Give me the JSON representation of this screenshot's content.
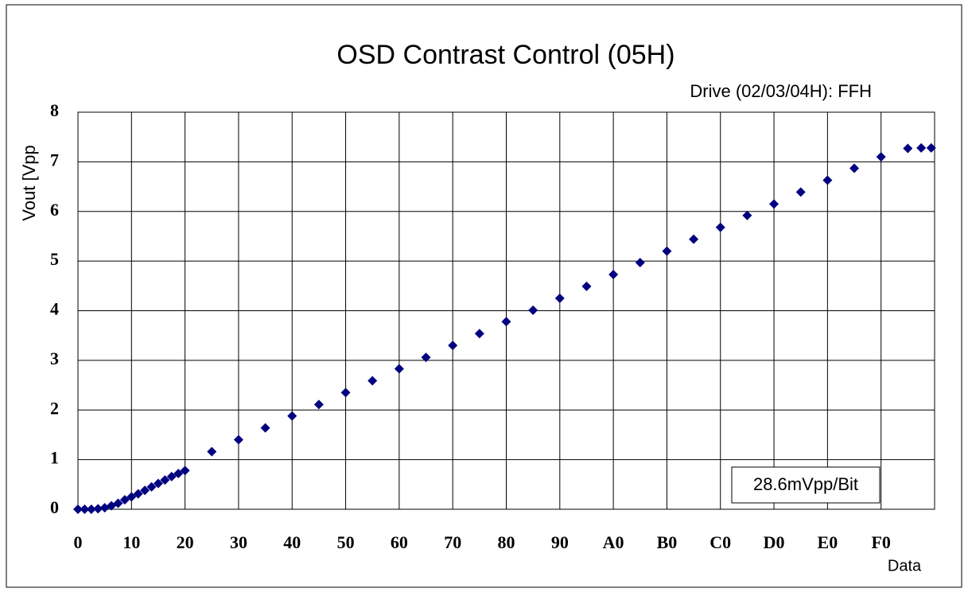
{
  "chart_data": {
    "type": "scatter",
    "title": "OSD Contrast Control (05H)",
    "subtitle": "Drive (02/03/04H): FFH",
    "x_label": "Data",
    "y_label": "Vout [Vpp",
    "annotation": "28.6mVpp/Bit",
    "xlim": [
      0,
      256
    ],
    "ylim": [
      0,
      8
    ],
    "xticks": [
      0,
      {
        "value": 16,
        "label": "10"
      },
      {
        "value": 32,
        "label": "20"
      },
      {
        "value": 48,
        "label": "30"
      },
      {
        "value": 64,
        "label": "40"
      },
      {
        "value": 80,
        "label": "50"
      },
      {
        "value": 96,
        "label": "60"
      },
      {
        "value": 112,
        "label": "70"
      },
      {
        "value": 128,
        "label": "80"
      },
      {
        "value": 144,
        "label": "90"
      },
      {
        "value": 160,
        "label": "A0"
      },
      {
        "value": 176,
        "label": "B0"
      },
      {
        "value": 192,
        "label": "C0"
      },
      {
        "value": 208,
        "label": "D0"
      },
      {
        "value": 224,
        "label": "E0"
      },
      {
        "value": 240,
        "label": "F0"
      }
    ],
    "yticks": [
      0,
      1,
      2,
      3,
      4,
      5,
      6,
      7,
      8
    ],
    "grid": true,
    "color": "#000080",
    "x": [
      0,
      2,
      4,
      6,
      8,
      10,
      12,
      14,
      16,
      18,
      20,
      22,
      24,
      26,
      28,
      30,
      32,
      40,
      48,
      56,
      64,
      72,
      80,
      88,
      96,
      104,
      112,
      120,
      128,
      136,
      144,
      152,
      160,
      168,
      176,
      184,
      192,
      200,
      208,
      216,
      224,
      232,
      240,
      248,
      252,
      255
    ],
    "values": [
      0,
      0,
      0,
      0.01,
      0.03,
      0.07,
      0.12,
      0.19,
      0.25,
      0.31,
      0.38,
      0.45,
      0.52,
      0.59,
      0.66,
      0.72,
      0.78,
      1.16,
      1.4,
      1.64,
      1.88,
      2.11,
      2.35,
      2.59,
      2.83,
      3.06,
      3.3,
      3.54,
      3.78,
      4.01,
      4.25,
      4.49,
      4.73,
      4.97,
      5.2,
      5.44,
      5.68,
      5.92,
      6.15,
      6.39,
      6.63,
      6.87,
      7.1,
      7.27,
      7.28,
      7.28
    ]
  }
}
